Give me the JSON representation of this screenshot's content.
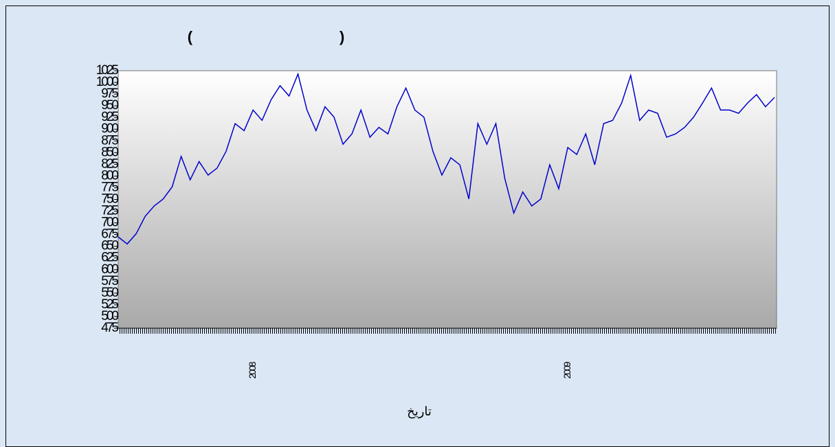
{
  "chart_data": {
    "type": "line",
    "title": "(                                   )",
    "x_label": "تاريخ",
    "categories": [
      null,
      null,
      null,
      null,
      null,
      null,
      null,
      null,
      null,
      null,
      null,
      null,
      null,
      null,
      null,
      "2008",
      null,
      null,
      null,
      null,
      null,
      null,
      null,
      null,
      null,
      null,
      null,
      null,
      null,
      null,
      null,
      null,
      null,
      null,
      null,
      null,
      null,
      null,
      null,
      null,
      null,
      null,
      null,
      null,
      null,
      null,
      null,
      null,
      null,
      null,
      "2009",
      null,
      null,
      null,
      null,
      null,
      null,
      null,
      null,
      null,
      null,
      null,
      null,
      null,
      null,
      null,
      null,
      null,
      null,
      null,
      null,
      null,
      null,
      null
    ],
    "series": [
      {
        "color": "#0000cc",
        "values": [
          670,
          655,
          677,
          714,
          736,
          751,
          777,
          842,
          792,
          831,
          802,
          817,
          853,
          912,
          897,
          941,
          919,
          963,
          993,
          971,
          1018,
          941,
          897,
          948,
          926,
          868,
          890,
          941,
          883,
          904,
          890,
          948,
          988,
          941,
          926,
          853,
          802,
          839,
          824,
          751,
          912,
          868,
          912,
          795,
          721,
          766,
          736,
          751,
          824,
          773,
          861,
          846,
          890,
          824,
          912,
          919,
          956,
          1015,
          919,
          941,
          934,
          883,
          890,
          904,
          926,
          956,
          988,
          941,
          941,
          934,
          956,
          974,
          948,
          968
        ]
      }
    ],
    "ylim": [
      475,
      1025
    ],
    "yticks": [
      475,
      500,
      525,
      550,
      575,
      600,
      625,
      650,
      675,
      700,
      725,
      750,
      775,
      800,
      825,
      850,
      875,
      900,
      925,
      950,
      975,
      1000,
      1025
    ]
  }
}
